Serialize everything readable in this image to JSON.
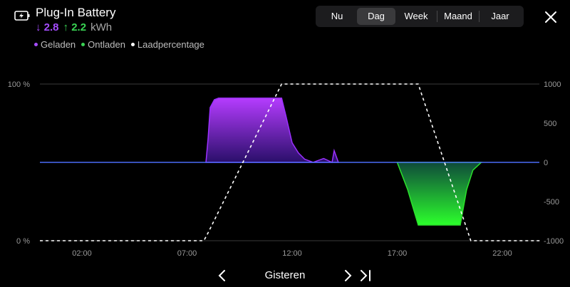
{
  "header": {
    "title": "Plug-In Battery",
    "charged_value": "2.8",
    "discharged_value": "2.2",
    "unit": "kWh"
  },
  "legend": [
    {
      "label": "Geladen",
      "color": "#a64dff"
    },
    {
      "label": "Ontladen",
      "color": "#39d353"
    },
    {
      "label": "Laadpercentage",
      "color": "#ffffff"
    }
  ],
  "tabs": [
    {
      "label": "Nu",
      "active": false
    },
    {
      "label": "Dag",
      "active": true
    },
    {
      "label": "Week",
      "active": false
    },
    {
      "label": "Maand",
      "active": false
    },
    {
      "label": "Jaar",
      "active": false
    }
  ],
  "footer": {
    "period_label": "Gisteren"
  },
  "colors": {
    "charge": "#a64dff",
    "discharge": "#39d353",
    "baseline": "#4a6cf7"
  },
  "chart_data": {
    "type": "area",
    "x_ticks": [
      "02:00",
      "07:00",
      "12:00",
      "17:00",
      "22:00"
    ],
    "x_tick_hours": [
      2,
      7,
      12,
      17,
      22
    ],
    "xlim_hours": [
      0,
      24
    ],
    "left_axis": {
      "ticks": [
        "100 %",
        "0 %"
      ],
      "ylim": [
        0,
        100
      ]
    },
    "right_axis": {
      "ticks": [
        "1000",
        "500",
        "0",
        "-500",
        "-1000"
      ],
      "ylim": [
        -1000,
        1000
      ]
    },
    "series": [
      {
        "name": "Geladen",
        "axis": "right",
        "x_hours": [
          7.9,
          8.0,
          8.1,
          8.3,
          8.5,
          9.0,
          10.0,
          11.0,
          11.5,
          11.7,
          12.0,
          12.3,
          12.6,
          13.0,
          13.5,
          13.9,
          14.0,
          14.2
        ],
        "values": [
          0,
          300,
          700,
          800,
          820,
          820,
          820,
          820,
          820,
          600,
          250,
          120,
          40,
          0,
          50,
          0,
          150,
          0
        ]
      },
      {
        "name": "Ontladen",
        "axis": "right",
        "x_hours": [
          17.0,
          17.5,
          18.0,
          18.5,
          19.0,
          19.5,
          20.0,
          20.3,
          20.6,
          21.0
        ],
        "values": [
          0,
          -350,
          -800,
          -800,
          -800,
          -800,
          -800,
          -350,
          -100,
          0
        ]
      },
      {
        "name": "Laadpercentage",
        "axis": "left",
        "x_hours": [
          0,
          7.8,
          8.0,
          11.5,
          12.0,
          18.0,
          19.5,
          20.5,
          23.8
        ],
        "values": [
          0,
          0,
          5,
          100,
          100,
          100,
          40,
          0,
          0
        ]
      }
    ]
  }
}
